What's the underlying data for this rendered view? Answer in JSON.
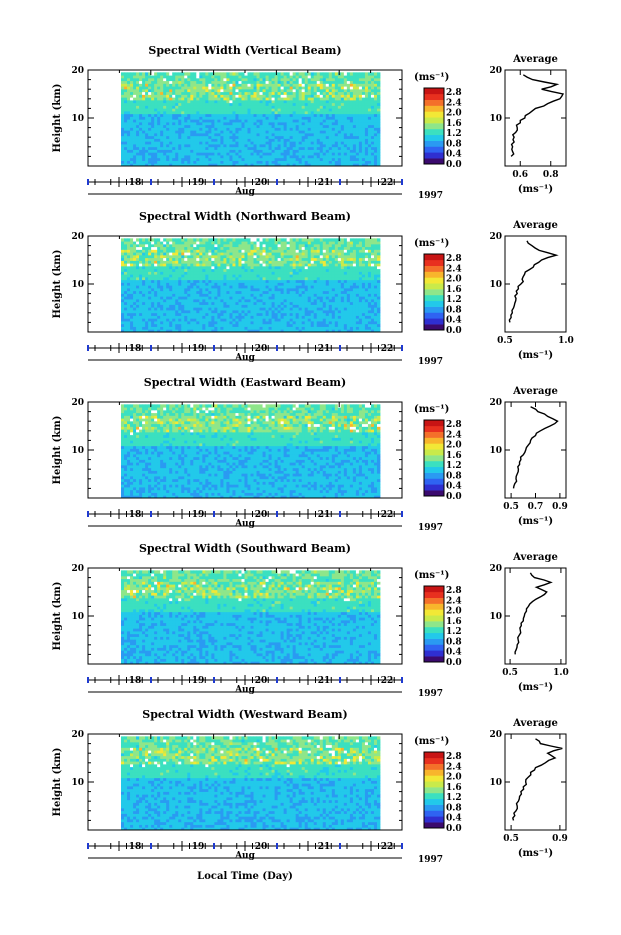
{
  "figure": {
    "x_axis_title": "Local Time (Day)",
    "month_label": "Aug",
    "year_label": "1997",
    "y_axis_title": "Height (km)",
    "unit_label": "(ms⁻¹)",
    "profile_title": "Average",
    "profile_xlabel": "(ms⁻¹)"
  },
  "colors": {
    "background": "#ffffff",
    "axis": "#000000",
    "time_marker": "#1f3ad0",
    "colormap": [
      "#3b0a6e",
      "#2f2fd1",
      "#2f63f2",
      "#2a9af2",
      "#22c9ea",
      "#3be0c0",
      "#8ee68a",
      "#c9ea4a",
      "#f2e836",
      "#f8b52c",
      "#f4702a",
      "#e8301f",
      "#c81414"
    ]
  },
  "chart_data": [
    {
      "type": "heatmap",
      "title": "Spectral Width (Vertical Beam)",
      "x_ticks": [
        "18",
        "19",
        "20",
        "21",
        "22"
      ],
      "y_ticks": [
        "10",
        "20"
      ],
      "ylim": [
        0,
        20
      ],
      "colorbar_ticks": [
        "0.0",
        "0.4",
        "0.8",
        "1.2",
        "1.6",
        "2.0",
        "2.4",
        "2.8"
      ],
      "profile": {
        "title": "Average",
        "x_ticks": [
          "0.6",
          "0.8"
        ],
        "xlim": [
          0.5,
          0.9
        ],
        "height": [
          2,
          3,
          4,
          5,
          6,
          7,
          8,
          9,
          10,
          11,
          12,
          13,
          14,
          15,
          16,
          17,
          18,
          19
        ],
        "values": [
          0.54,
          0.55,
          0.55,
          0.56,
          0.56,
          0.57,
          0.58,
          0.6,
          0.63,
          0.66,
          0.7,
          0.78,
          0.86,
          0.88,
          0.74,
          0.84,
          0.68,
          0.62
        ]
      }
    },
    {
      "type": "heatmap",
      "title": "Spectral Width (Northward Beam)",
      "x_ticks": [
        "18",
        "19",
        "20",
        "21",
        "22"
      ],
      "y_ticks": [
        "10",
        "20"
      ],
      "ylim": [
        0,
        20
      ],
      "colorbar_ticks": [
        "0.0",
        "0.4",
        "0.8",
        "1.2",
        "1.6",
        "2.0",
        "2.4",
        "2.8"
      ],
      "profile": {
        "title": "Average",
        "x_ticks": [
          "0.5",
          "1.0"
        ],
        "xlim": [
          0.5,
          1.0
        ],
        "height": [
          2,
          3,
          4,
          5,
          6,
          7,
          8,
          9,
          10,
          11,
          12,
          13,
          14,
          15,
          16,
          17,
          18,
          19
        ],
        "values": [
          0.54,
          0.55,
          0.56,
          0.57,
          0.58,
          0.59,
          0.6,
          0.61,
          0.63,
          0.64,
          0.66,
          0.7,
          0.74,
          0.8,
          0.92,
          0.78,
          0.72,
          0.68
        ]
      }
    },
    {
      "type": "heatmap",
      "title": "Spectral Width (Eastward Beam)",
      "x_ticks": [
        "18",
        "19",
        "20",
        "21",
        "22"
      ],
      "y_ticks": [
        "10",
        "20"
      ],
      "ylim": [
        0,
        20
      ],
      "colorbar_ticks": [
        "0.0",
        "0.4",
        "0.8",
        "1.2",
        "1.6",
        "2.0",
        "2.4",
        "2.8"
      ],
      "profile": {
        "title": "Average",
        "x_ticks": [
          "0.5",
          "0.7",
          "0.9"
        ],
        "xlim": [
          0.45,
          0.95
        ],
        "height": [
          2,
          3,
          4,
          5,
          6,
          7,
          8,
          9,
          10,
          11,
          12,
          13,
          14,
          15,
          16,
          17,
          18,
          19
        ],
        "values": [
          0.52,
          0.53,
          0.54,
          0.55,
          0.56,
          0.57,
          0.58,
          0.6,
          0.62,
          0.64,
          0.66,
          0.7,
          0.74,
          0.82,
          0.88,
          0.8,
          0.72,
          0.66
        ]
      }
    },
    {
      "type": "heatmap",
      "title": "Spectral Width (Southward Beam)",
      "x_ticks": [
        "18",
        "19",
        "20",
        "21",
        "22"
      ],
      "y_ticks": [
        "10",
        "20"
      ],
      "ylim": [
        0,
        20
      ],
      "colorbar_ticks": [
        "0.0",
        "0.4",
        "0.8",
        "1.2",
        "1.6",
        "2.0",
        "2.4",
        "2.8"
      ],
      "profile": {
        "title": "Average",
        "x_ticks": [
          "0.5",
          "1.0"
        ],
        "xlim": [
          0.45,
          1.05
        ],
        "height": [
          2,
          3,
          4,
          5,
          6,
          7,
          8,
          9,
          10,
          11,
          12,
          13,
          14,
          15,
          16,
          17,
          18,
          19
        ],
        "values": [
          0.55,
          0.56,
          0.57,
          0.58,
          0.59,
          0.6,
          0.61,
          0.63,
          0.64,
          0.66,
          0.68,
          0.72,
          0.8,
          0.86,
          0.76,
          0.9,
          0.74,
          0.7
        ]
      }
    },
    {
      "type": "heatmap",
      "title": "Spectral Width (Westward Beam)",
      "x_ticks": [
        "18",
        "19",
        "20",
        "21",
        "22"
      ],
      "y_ticks": [
        "10",
        "20"
      ],
      "ylim": [
        0,
        20
      ],
      "colorbar_ticks": [
        "0.0",
        "0.4",
        "0.8",
        "1.2",
        "1.6",
        "2.0",
        "2.4",
        "2.8"
      ],
      "profile": {
        "title": "Average",
        "x_ticks": [
          "0.5",
          "0.9"
        ],
        "xlim": [
          0.45,
          0.95
        ],
        "height": [
          2,
          3,
          4,
          5,
          6,
          7,
          8,
          9,
          10,
          11,
          12,
          13,
          14,
          15,
          16,
          17,
          18,
          19
        ],
        "values": [
          0.52,
          0.53,
          0.54,
          0.55,
          0.56,
          0.57,
          0.58,
          0.6,
          0.62,
          0.64,
          0.66,
          0.7,
          0.78,
          0.86,
          0.8,
          0.92,
          0.74,
          0.7
        ]
      }
    }
  ]
}
